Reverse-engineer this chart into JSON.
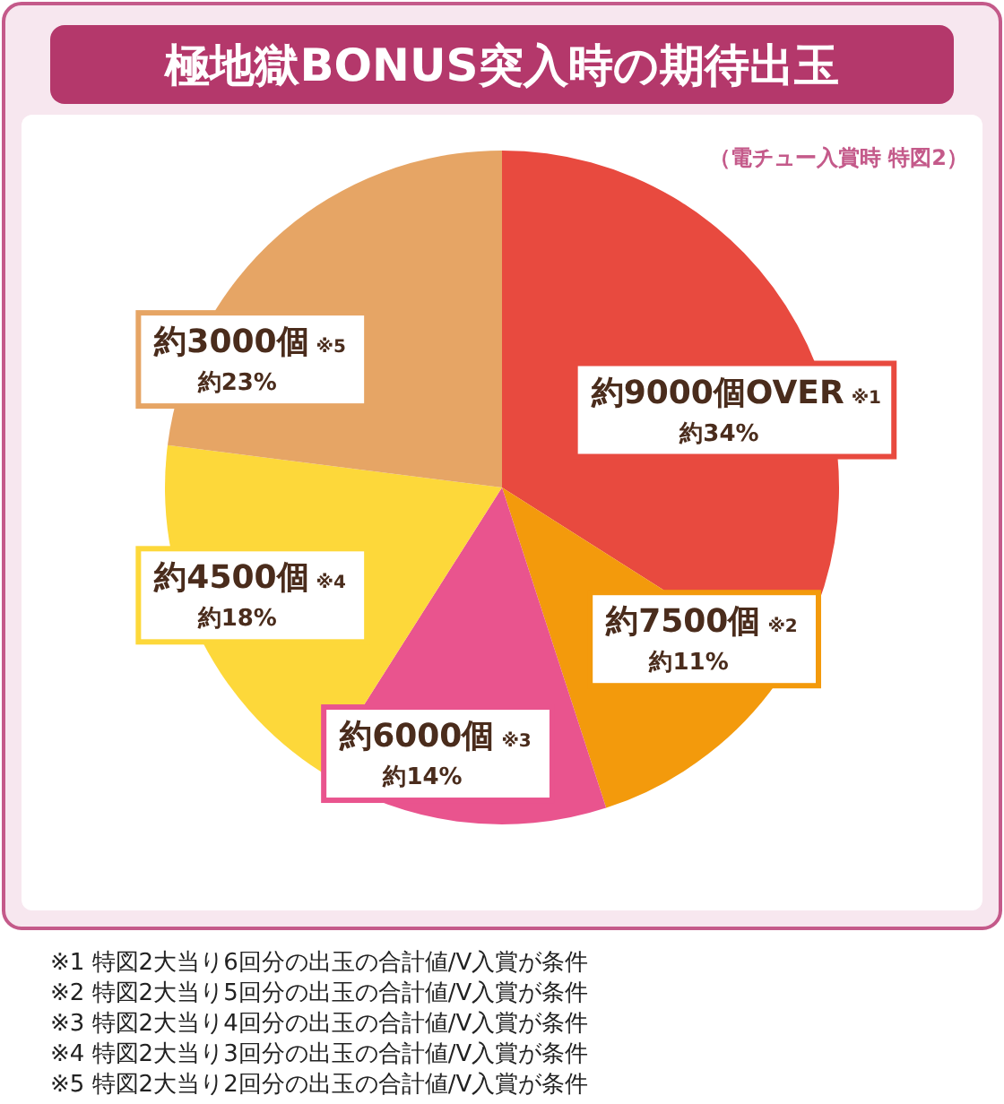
{
  "chart_data": {
    "type": "pie",
    "title": "極地獄BONUS突入時の期待出玉",
    "subtitle": "（電チュー入賞時 特図2）",
    "categories": [
      "約9000個OVER ※1",
      "約7500個 ※2",
      "約6000個 ※3",
      "約4500個 ※4",
      "約3000個 ※5"
    ],
    "values": [
      34,
      11,
      14,
      18,
      23
    ],
    "value_labels": [
      "約34%",
      "約11%",
      "約14%",
      "約18%",
      "約23%"
    ],
    "colors": [
      "#e84a3f",
      "#f39a0c",
      "#e9548e",
      "#fdd83a",
      "#e6a565"
    ],
    "annotations": [
      "※1 特図2大当り6回分の出玉の合計値/V入賞が条件",
      "※2 特図2大当り5回分の出玉の合計値/V入賞が条件",
      "※3 特図2大当り4回分の出玉の合計値/V入賞が条件",
      "※4 特図2大当り3回分の出玉の合計値/V入賞が条件",
      "※5 特図2大当り2回分の出玉の合計値/V入賞が条件"
    ]
  }
}
